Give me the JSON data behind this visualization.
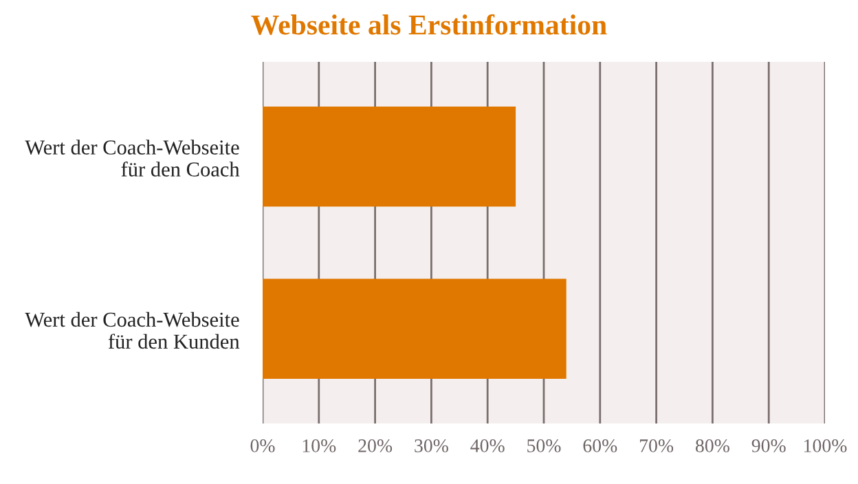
{
  "chart_data": {
    "type": "bar",
    "orientation": "horizontal",
    "title": "Webseite als Erstinformation",
    "categories": [
      "Wert der Coach-Webseite\nfür den Coach",
      "Wert der Coach-Webseite\nfür den Kunden"
    ],
    "values": [
      45,
      54
    ],
    "color": "#e07800",
    "xlim": [
      0,
      100
    ],
    "xticks": [
      {
        "value": 0,
        "label": "0%"
      },
      {
        "value": 10,
        "label": "10%"
      },
      {
        "value": 20,
        "label": "20%"
      },
      {
        "value": 30,
        "label": "30%"
      },
      {
        "value": 40,
        "label": "40%"
      },
      {
        "value": 50,
        "label": "50%"
      },
      {
        "value": 60,
        "label": "60%"
      },
      {
        "value": 70,
        "label": "70%"
      },
      {
        "value": 80,
        "label": "80%"
      },
      {
        "value": 90,
        "label": "90%"
      },
      {
        "value": 100,
        "label": "100%"
      }
    ],
    "grid": "x"
  }
}
